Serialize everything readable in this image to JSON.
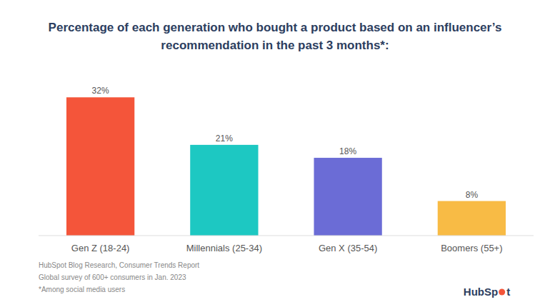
{
  "chart_data": {
    "type": "bar",
    "title": "Percentage of each generation who bought a product based on an influencer’s",
    "subtitle": "recommendation in the past 3 months*:",
    "categories": [
      "Gen Z (18-24)",
      "Millennials (25-34)",
      "Gen X (35-54)",
      "Boomers (55+)"
    ],
    "values": [
      32,
      21,
      18,
      8
    ],
    "value_labels": [
      "32%",
      "21%",
      "18%",
      "8%"
    ],
    "colors": [
      "#F4553A",
      "#1DC8C2",
      "#6B6CD6",
      "#F8BB45"
    ],
    "ylim": [
      0,
      38
    ],
    "grid": false,
    "data_labels": true,
    "tick_labels": "x",
    "annotations": [
      "HubSpot Blog Research, Consumer Trends Report",
      "Global survey of 600+ consumers in Jan. 2023",
      "*Among social media users",
      "Hub",
      "Sp",
      "t"
    ]
  }
}
